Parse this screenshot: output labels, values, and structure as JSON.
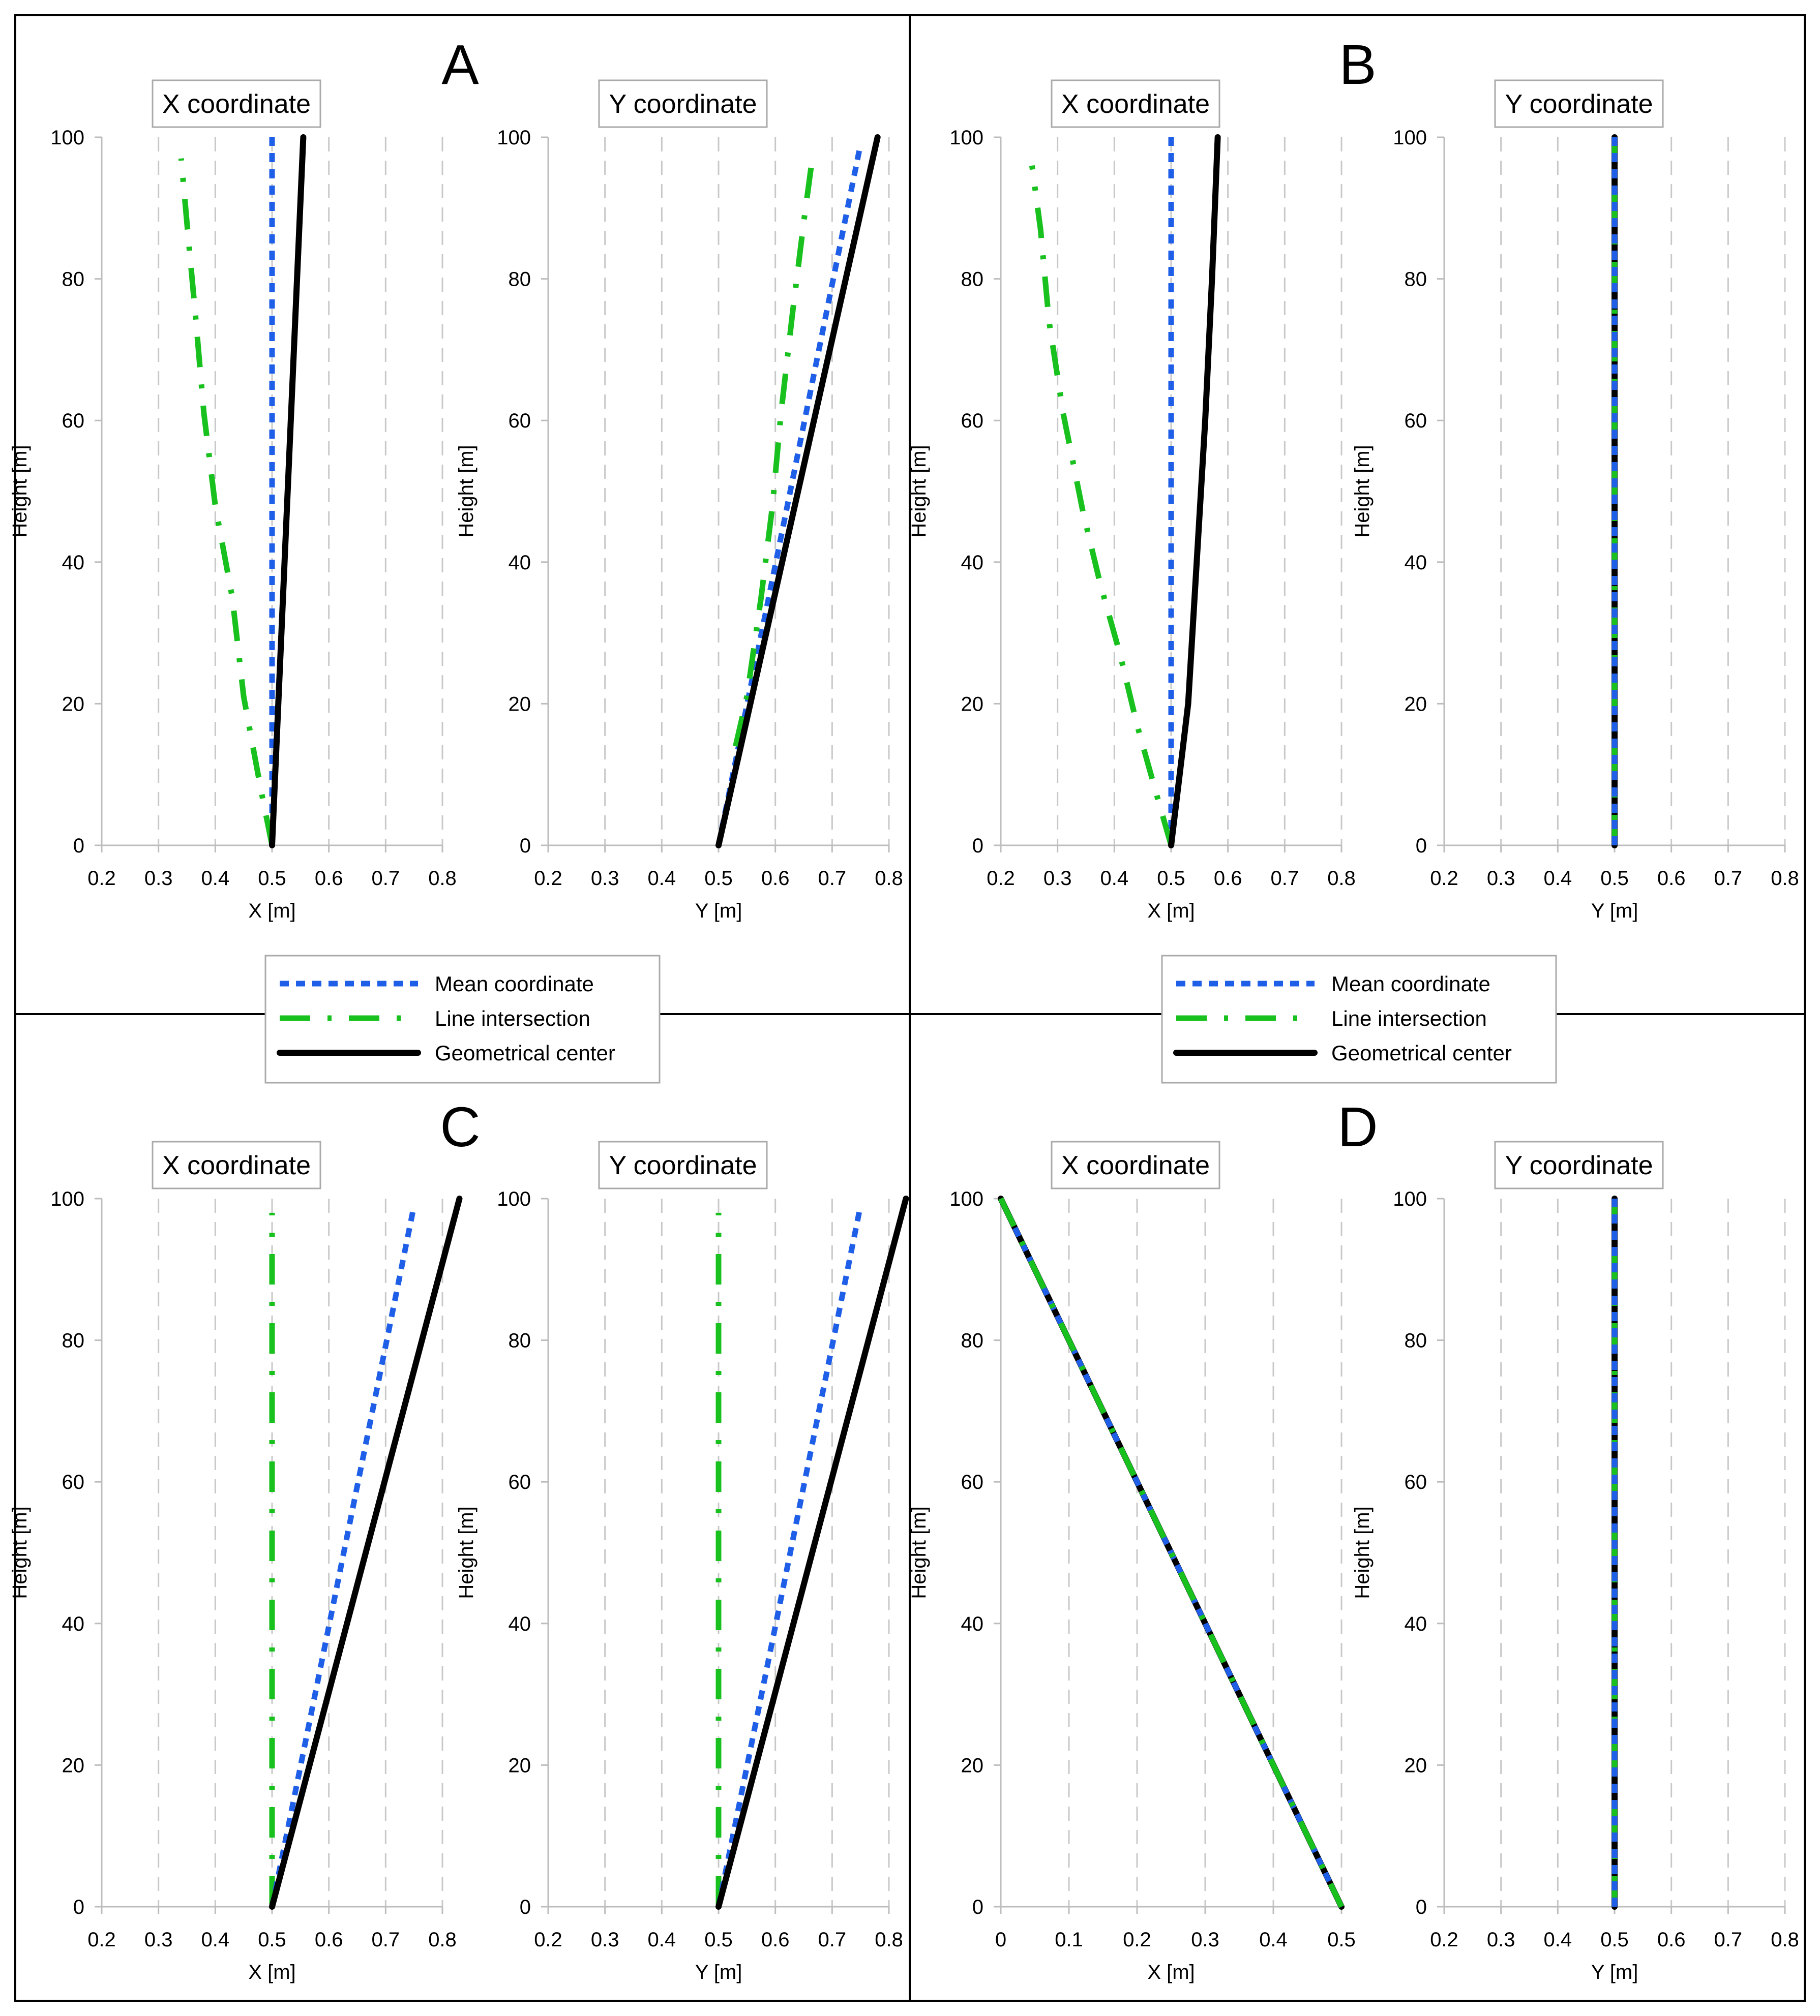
{
  "legend": {
    "entries": [
      {
        "name": "Mean coordinate",
        "color": "#1f5fe8",
        "style": "dotted"
      },
      {
        "name": "Line intersection",
        "color": "#18c11e",
        "style": "dash-dot"
      },
      {
        "name": "Geometrical center",
        "color": "#000000",
        "style": "solid"
      }
    ]
  },
  "chart_data": [
    {
      "type": "line",
      "panel": "A",
      "title": "X coordinate",
      "xlabel": "X [m]",
      "ylabel": "Height [m]",
      "xlim": [
        0.2,
        0.8
      ],
      "ylim": [
        0,
        100
      ],
      "xticks": [
        "0.2",
        "0.3",
        "0.4",
        "0.5",
        "0.6",
        "0.7",
        "0.8"
      ],
      "yticks": [
        "0",
        "20",
        "40",
        "60",
        "80",
        "100"
      ],
      "series": [
        {
          "name": "Mean coordinate",
          "points": [
            [
              0.5,
              0
            ],
            [
              0.5,
              100
            ]
          ]
        },
        {
          "name": "Line intersection",
          "points": [
            [
              0.5,
              0
            ],
            [
              0.48,
              8
            ],
            [
              0.45,
              21
            ],
            [
              0.43,
              35
            ],
            [
              0.4,
              48
            ],
            [
              0.38,
              61
            ],
            [
              0.365,
              75
            ],
            [
              0.35,
              88
            ],
            [
              0.34,
              97
            ]
          ]
        },
        {
          "name": "Geometrical center",
          "points": [
            [
              0.5,
              0
            ],
            [
              0.555,
              100
            ]
          ]
        }
      ]
    },
    {
      "type": "line",
      "panel": "A",
      "title": "Y coordinate",
      "xlabel": "Y [m]",
      "ylabel": "Height [m]",
      "xlim": [
        0.2,
        0.8
      ],
      "ylim": [
        0,
        100
      ],
      "xticks": [
        "0.2",
        "0.3",
        "0.4",
        "0.5",
        "0.6",
        "0.7",
        "0.8"
      ],
      "yticks": [
        "0",
        "20",
        "40",
        "60",
        "80",
        "100"
      ],
      "series": [
        {
          "name": "Mean coordinate",
          "points": [
            [
              0.5,
              0
            ],
            [
              0.75,
              99
            ]
          ]
        },
        {
          "name": "Line intersection",
          "points": [
            [
              0.53,
              14
            ],
            [
              0.55,
              21
            ],
            [
              0.575,
              35
            ],
            [
              0.595,
              48
            ],
            [
              0.61,
              61
            ],
            [
              0.63,
              75
            ],
            [
              0.65,
              88
            ],
            [
              0.665,
              97
            ]
          ]
        },
        {
          "name": "Geometrical center",
          "points": [
            [
              0.5,
              0
            ],
            [
              0.78,
              100
            ]
          ]
        }
      ]
    },
    {
      "type": "line",
      "panel": "B",
      "title": "X coordinate",
      "xlabel": "X [m]",
      "ylabel": "Height [m]",
      "xlim": [
        0.2,
        0.8
      ],
      "ylim": [
        0,
        100
      ],
      "xticks": [
        "0.2",
        "0.3",
        "0.4",
        "0.5",
        "0.6",
        "0.7",
        "0.8"
      ],
      "yticks": [
        "0",
        "20",
        "40",
        "60",
        "80",
        "100"
      ],
      "series": [
        {
          "name": "Mean coordinate",
          "points": [
            [
              0.5,
              0
            ],
            [
              0.5,
              100
            ]
          ]
        },
        {
          "name": "Line intersection",
          "points": [
            [
              0.5,
              0
            ],
            [
              0.475,
              7
            ],
            [
              0.44,
              17
            ],
            [
              0.41,
              27
            ],
            [
              0.375,
              37
            ],
            [
              0.345,
              47
            ],
            [
              0.31,
              61
            ],
            [
              0.285,
              74
            ],
            [
              0.27,
              87
            ],
            [
              0.255,
              96
            ]
          ]
        },
        {
          "name": "Geometrical center",
          "points": [
            [
              0.5,
              0
            ],
            [
              0.515,
              10
            ],
            [
              0.53,
              20
            ],
            [
              0.545,
              40
            ],
            [
              0.56,
              60
            ],
            [
              0.572,
              80
            ],
            [
              0.582,
              100
            ]
          ]
        }
      ]
    },
    {
      "type": "line",
      "panel": "B",
      "title": "Y coordinate",
      "xlabel": "Y [m]",
      "ylabel": "Height [m]",
      "xlim": [
        0.2,
        0.8
      ],
      "ylim": [
        0,
        100
      ],
      "xticks": [
        "0.2",
        "0.3",
        "0.4",
        "0.5",
        "0.6",
        "0.7",
        "0.8"
      ],
      "yticks": [
        "0",
        "20",
        "40",
        "60",
        "80",
        "100"
      ],
      "series": [
        {
          "name": "Geometrical center",
          "points": [
            [
              0.5,
              0
            ],
            [
              0.5,
              100
            ]
          ]
        },
        {
          "name": "Line intersection",
          "points": [
            [
              0.5,
              0
            ],
            [
              0.5,
              100
            ]
          ]
        },
        {
          "name": "Mean coordinate",
          "points": [
            [
              0.5,
              0
            ],
            [
              0.5,
              100
            ]
          ]
        }
      ]
    },
    {
      "type": "line",
      "panel": "C",
      "title": "X coordinate",
      "xlabel": "X [m]",
      "ylabel": "Height [m]",
      "xlim": [
        0.2,
        0.8
      ],
      "ylim": [
        0,
        100
      ],
      "xticks": [
        "0.2",
        "0.3",
        "0.4",
        "0.5",
        "0.6",
        "0.7",
        "0.8"
      ],
      "yticks": [
        "0",
        "20",
        "40",
        "60",
        "80",
        "100"
      ],
      "series": [
        {
          "name": "Line intersection",
          "points": [
            [
              0.5,
              0
            ],
            [
              0.5,
              98
            ]
          ]
        },
        {
          "name": "Mean coordinate",
          "points": [
            [
              0.5,
              0
            ],
            [
              0.75,
              99
            ]
          ]
        },
        {
          "name": "Geometrical center",
          "points": [
            [
              0.5,
              0
            ],
            [
              0.83,
              100
            ]
          ]
        }
      ]
    },
    {
      "type": "line",
      "panel": "C",
      "title": "Y coordinate",
      "xlabel": "Y [m]",
      "ylabel": "Height [m]",
      "xlim": [
        0.2,
        0.8
      ],
      "ylim": [
        0,
        100
      ],
      "xticks": [
        "0.2",
        "0.3",
        "0.4",
        "0.5",
        "0.6",
        "0.7",
        "0.8"
      ],
      "yticks": [
        "0",
        "20",
        "40",
        "60",
        "80",
        "100"
      ],
      "series": [
        {
          "name": "Line intersection",
          "points": [
            [
              0.5,
              0
            ],
            [
              0.5,
              98
            ]
          ]
        },
        {
          "name": "Mean coordinate",
          "points": [
            [
              0.5,
              0
            ],
            [
              0.75,
              99
            ]
          ]
        },
        {
          "name": "Geometrical center",
          "points": [
            [
              0.5,
              0
            ],
            [
              0.83,
              100
            ]
          ]
        }
      ]
    },
    {
      "type": "line",
      "panel": "D",
      "title": "X coordinate",
      "xlabel": "X [m]",
      "ylabel": "Height [m]",
      "xlim": [
        0,
        0.5
      ],
      "ylim": [
        0,
        100
      ],
      "xticks": [
        "0",
        "0.1",
        "0.2",
        "0.3",
        "0.4",
        "0.5"
      ],
      "yticks": [
        "0",
        "20",
        "40",
        "60",
        "80",
        "100"
      ],
      "series": [
        {
          "name": "Geometrical center",
          "points": [
            [
              0,
              100
            ],
            [
              0.5,
              0
            ]
          ]
        },
        {
          "name": "Mean coordinate",
          "points": [
            [
              0,
              100
            ],
            [
              0.5,
              0
            ]
          ]
        },
        {
          "name": "Line intersection",
          "points": [
            [
              0,
              100
            ],
            [
              0.5,
              0
            ]
          ]
        }
      ]
    },
    {
      "type": "line",
      "panel": "D",
      "title": "Y coordinate",
      "xlabel": "Y [m]",
      "ylabel": "Height [m]",
      "xlim": [
        0.2,
        0.8
      ],
      "ylim": [
        0,
        100
      ],
      "xticks": [
        "0.2",
        "0.3",
        "0.4",
        "0.5",
        "0.6",
        "0.7",
        "0.8"
      ],
      "yticks": [
        "0",
        "20",
        "40",
        "60",
        "80",
        "100"
      ],
      "series": [
        {
          "name": "Geometrical center",
          "points": [
            [
              0.5,
              0
            ],
            [
              0.5,
              100
            ]
          ]
        },
        {
          "name": "Line intersection",
          "points": [
            [
              0.5,
              0
            ],
            [
              0.5,
              100
            ]
          ]
        },
        {
          "name": "Mean coordinate",
          "points": [
            [
              0.5,
              0
            ],
            [
              0.5,
              100
            ]
          ]
        }
      ]
    }
  ]
}
